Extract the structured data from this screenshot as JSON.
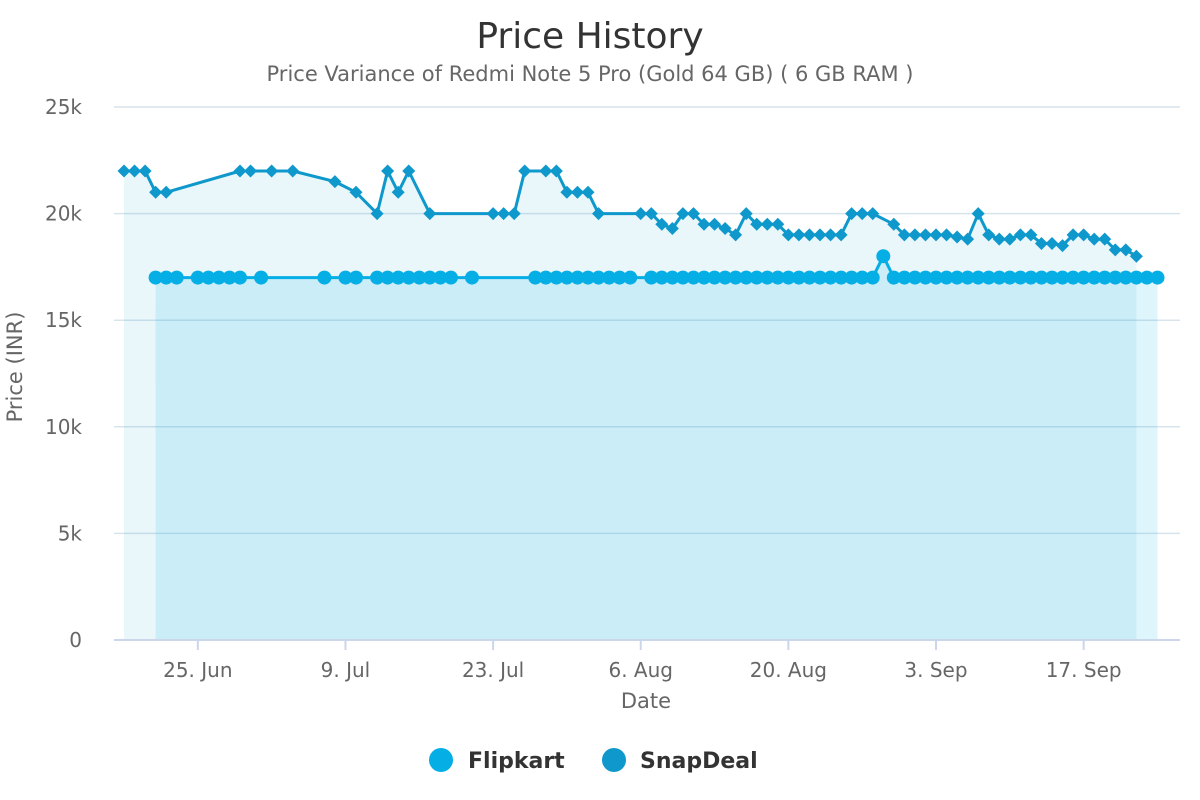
{
  "chart_data": {
    "type": "area",
    "title": "Price History",
    "subtitle": "Price Variance of Redmi Note 5 Pro (Gold 64 GB) ( 6 GB RAM )",
    "xlabel": "Date",
    "ylabel": "Price (INR)",
    "ylim": [
      0,
      25000
    ],
    "yticks": [
      0,
      5000,
      10000,
      15000,
      20000,
      25000
    ],
    "ytick_labels": [
      "0",
      "5k",
      "10k",
      "15k",
      "20k",
      "25k"
    ],
    "xlim": [
      "2018-06-18",
      "2018-09-25"
    ],
    "xticks": [
      "2018-06-25",
      "2018-07-09",
      "2018-07-23",
      "2018-08-06",
      "2018-08-20",
      "2018-09-03",
      "2018-09-17"
    ],
    "xtick_labels": [
      "25. Jun",
      "9. Jul",
      "23. Jul",
      "6. Aug",
      "20. Aug",
      "3. Sep",
      "17. Sep"
    ],
    "grid": true,
    "legend_position": "bottom-center",
    "series": [
      {
        "name": "Flipkart",
        "color": "#06aee6",
        "marker": "circle",
        "points": [
          [
            "2018-06-21",
            17000
          ],
          [
            "2018-06-22",
            17000
          ],
          [
            "2018-06-23",
            17000
          ],
          [
            "2018-06-25",
            17000
          ],
          [
            "2018-06-26",
            17000
          ],
          [
            "2018-06-27",
            17000
          ],
          [
            "2018-06-28",
            17000
          ],
          [
            "2018-06-29",
            17000
          ],
          [
            "2018-07-01",
            17000
          ],
          [
            "2018-07-07",
            17000
          ],
          [
            "2018-07-09",
            17000
          ],
          [
            "2018-07-10",
            17000
          ],
          [
            "2018-07-12",
            17000
          ],
          [
            "2018-07-13",
            17000
          ],
          [
            "2018-07-14",
            17000
          ],
          [
            "2018-07-15",
            17000
          ],
          [
            "2018-07-16",
            17000
          ],
          [
            "2018-07-17",
            17000
          ],
          [
            "2018-07-18",
            17000
          ],
          [
            "2018-07-19",
            17000
          ],
          [
            "2018-07-21",
            17000
          ],
          [
            "2018-07-27",
            17000
          ],
          [
            "2018-07-28",
            17000
          ],
          [
            "2018-07-29",
            17000
          ],
          [
            "2018-07-30",
            17000
          ],
          [
            "2018-07-31",
            17000
          ],
          [
            "2018-08-01",
            17000
          ],
          [
            "2018-08-02",
            17000
          ],
          [
            "2018-08-03",
            17000
          ],
          [
            "2018-08-04",
            17000
          ],
          [
            "2018-08-05",
            17000
          ],
          [
            "2018-08-07",
            17000
          ],
          [
            "2018-08-08",
            17000
          ],
          [
            "2018-08-09",
            17000
          ],
          [
            "2018-08-10",
            17000
          ],
          [
            "2018-08-11",
            17000
          ],
          [
            "2018-08-12",
            17000
          ],
          [
            "2018-08-13",
            17000
          ],
          [
            "2018-08-14",
            17000
          ],
          [
            "2018-08-15",
            17000
          ],
          [
            "2018-08-16",
            17000
          ],
          [
            "2018-08-17",
            17000
          ],
          [
            "2018-08-18",
            17000
          ],
          [
            "2018-08-19",
            17000
          ],
          [
            "2018-08-20",
            17000
          ],
          [
            "2018-08-21",
            17000
          ],
          [
            "2018-08-22",
            17000
          ],
          [
            "2018-08-23",
            17000
          ],
          [
            "2018-08-24",
            17000
          ],
          [
            "2018-08-25",
            17000
          ],
          [
            "2018-08-26",
            17000
          ],
          [
            "2018-08-27",
            17000
          ],
          [
            "2018-08-28",
            17000
          ],
          [
            "2018-08-29",
            18000
          ],
          [
            "2018-08-30",
            17000
          ],
          [
            "2018-08-31",
            17000
          ],
          [
            "2018-09-01",
            17000
          ],
          [
            "2018-09-02",
            17000
          ],
          [
            "2018-09-03",
            17000
          ],
          [
            "2018-09-04",
            17000
          ],
          [
            "2018-09-05",
            17000
          ],
          [
            "2018-09-06",
            17000
          ],
          [
            "2018-09-07",
            17000
          ],
          [
            "2018-09-08",
            17000
          ],
          [
            "2018-09-09",
            17000
          ],
          [
            "2018-09-10",
            17000
          ],
          [
            "2018-09-11",
            17000
          ],
          [
            "2018-09-12",
            17000
          ],
          [
            "2018-09-13",
            17000
          ],
          [
            "2018-09-14",
            17000
          ],
          [
            "2018-09-15",
            17000
          ],
          [
            "2018-09-16",
            17000
          ],
          [
            "2018-09-17",
            17000
          ],
          [
            "2018-09-18",
            17000
          ],
          [
            "2018-09-19",
            17000
          ],
          [
            "2018-09-20",
            17000
          ],
          [
            "2018-09-21",
            17000
          ],
          [
            "2018-09-22",
            17000
          ],
          [
            "2018-09-23",
            17000
          ],
          [
            "2018-09-24",
            17000
          ]
        ]
      },
      {
        "name": "SnapDeal",
        "color": "#0f98cb",
        "marker": "diamond",
        "points": [
          [
            "2018-06-18",
            22000
          ],
          [
            "2018-06-19",
            22000
          ],
          [
            "2018-06-20",
            22000
          ],
          [
            "2018-06-21",
            21000
          ],
          [
            "2018-06-22",
            21000
          ],
          [
            "2018-06-29",
            22000
          ],
          [
            "2018-06-30",
            22000
          ],
          [
            "2018-07-02",
            22000
          ],
          [
            "2018-07-04",
            22000
          ],
          [
            "2018-07-08",
            21500
          ],
          [
            "2018-07-10",
            21000
          ],
          [
            "2018-07-12",
            20000
          ],
          [
            "2018-07-13",
            22000
          ],
          [
            "2018-07-14",
            21000
          ],
          [
            "2018-07-15",
            22000
          ],
          [
            "2018-07-17",
            20000
          ],
          [
            "2018-07-23",
            20000
          ],
          [
            "2018-07-24",
            20000
          ],
          [
            "2018-07-25",
            20000
          ],
          [
            "2018-07-26",
            22000
          ],
          [
            "2018-07-28",
            22000
          ],
          [
            "2018-07-29",
            22000
          ],
          [
            "2018-07-30",
            21000
          ],
          [
            "2018-07-31",
            21000
          ],
          [
            "2018-08-01",
            21000
          ],
          [
            "2018-08-02",
            20000
          ],
          [
            "2018-08-06",
            20000
          ],
          [
            "2018-08-07",
            20000
          ],
          [
            "2018-08-08",
            19500
          ],
          [
            "2018-08-09",
            19300
          ],
          [
            "2018-08-10",
            20000
          ],
          [
            "2018-08-11",
            20000
          ],
          [
            "2018-08-12",
            19500
          ],
          [
            "2018-08-13",
            19500
          ],
          [
            "2018-08-14",
            19300
          ],
          [
            "2018-08-15",
            19000
          ],
          [
            "2018-08-16",
            20000
          ],
          [
            "2018-08-17",
            19500
          ],
          [
            "2018-08-18",
            19500
          ],
          [
            "2018-08-19",
            19500
          ],
          [
            "2018-08-20",
            19000
          ],
          [
            "2018-08-21",
            19000
          ],
          [
            "2018-08-22",
            19000
          ],
          [
            "2018-08-23",
            19000
          ],
          [
            "2018-08-24",
            19000
          ],
          [
            "2018-08-25",
            19000
          ],
          [
            "2018-08-26",
            20000
          ],
          [
            "2018-08-27",
            20000
          ],
          [
            "2018-08-28",
            20000
          ],
          [
            "2018-08-30",
            19500
          ],
          [
            "2018-08-31",
            19000
          ],
          [
            "2018-09-01",
            19000
          ],
          [
            "2018-09-02",
            19000
          ],
          [
            "2018-09-03",
            19000
          ],
          [
            "2018-09-04",
            19000
          ],
          [
            "2018-09-05",
            18900
          ],
          [
            "2018-09-06",
            18800
          ],
          [
            "2018-09-07",
            20000
          ],
          [
            "2018-09-08",
            19000
          ],
          [
            "2018-09-09",
            18800
          ],
          [
            "2018-09-10",
            18800
          ],
          [
            "2018-09-11",
            19000
          ],
          [
            "2018-09-12",
            19000
          ],
          [
            "2018-09-13",
            18600
          ],
          [
            "2018-09-14",
            18600
          ],
          [
            "2018-09-15",
            18500
          ],
          [
            "2018-09-16",
            19000
          ],
          [
            "2018-09-17",
            19000
          ],
          [
            "2018-09-18",
            18800
          ],
          [
            "2018-09-19",
            18800
          ],
          [
            "2018-09-20",
            18300
          ],
          [
            "2018-09-21",
            18300
          ],
          [
            "2018-09-22",
            18000
          ]
        ]
      }
    ]
  }
}
